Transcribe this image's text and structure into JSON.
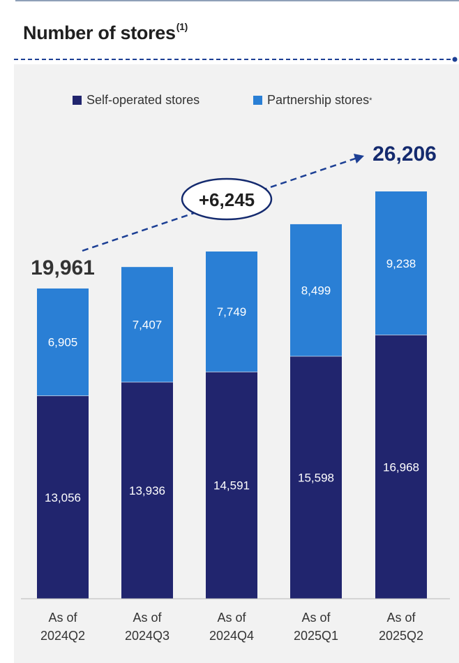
{
  "title": "Number of stores",
  "title_note": "(1)",
  "colors": {
    "self": "#21256e",
    "partner": "#2a7fd5",
    "accent": "#1c3f94"
  },
  "legend": {
    "self_label": "Self-operated stores",
    "partner_label": "Partnership stores",
    "partner_note": "*"
  },
  "chart_data": {
    "type": "bar",
    "stacked": true,
    "title": "Number of stores",
    "categories": [
      "As of 2024Q2",
      "As of 2024Q3",
      "As of 2024Q4",
      "As of 2025Q1",
      "As of 2025Q2"
    ],
    "category_lines": [
      [
        "As of",
        "2024Q2"
      ],
      [
        "As of",
        "2024Q3"
      ],
      [
        "As of",
        "2024Q4"
      ],
      [
        "As of",
        "2025Q1"
      ],
      [
        "As of",
        "2025Q2"
      ]
    ],
    "series": [
      {
        "name": "Self-operated stores",
        "values": [
          13056,
          13936,
          14591,
          15598,
          16968
        ],
        "labels": [
          "13,056",
          "13,936",
          "14,591",
          "15,598",
          "16,968"
        ]
      },
      {
        "name": "Partnership stores",
        "values": [
          6905,
          7407,
          7749,
          8499,
          9238
        ],
        "labels": [
          "6,905",
          "7,407",
          "7,749",
          "8,499",
          "9,238"
        ]
      }
    ],
    "ylim": [
      0,
      26206
    ],
    "annotations": {
      "start_total": "19,961",
      "end_total": "26,206",
      "growth": "+6,245"
    }
  }
}
